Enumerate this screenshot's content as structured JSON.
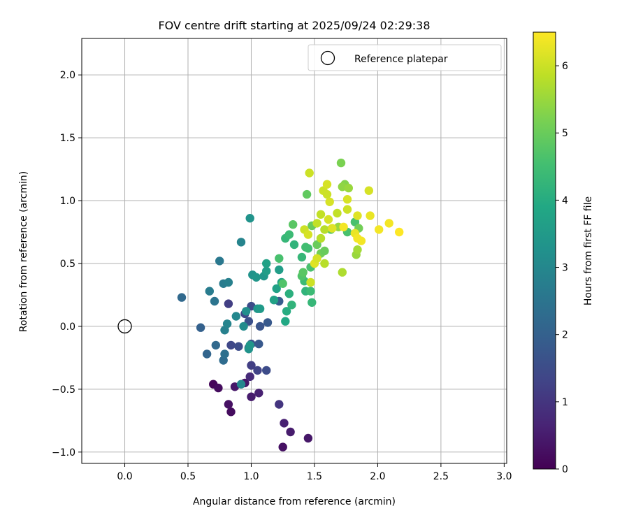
{
  "chart_data": {
    "type": "scatter",
    "title": "FOV centre drift starting at 2025/09/24 02:29:38",
    "xlabel": "Angular distance from reference (arcmin)",
    "ylabel": "Rotation from reference (arcmin)",
    "xlim": [
      -0.34,
      3.02
    ],
    "ylim": [
      -1.09,
      2.29
    ],
    "grid": true,
    "x_ticks": [
      0.0,
      0.5,
      1.0,
      1.5,
      2.0,
      2.5,
      3.0
    ],
    "x_tick_labels": [
      "0.0",
      "0.5",
      "1.0",
      "1.5",
      "2.0",
      "2.5",
      "3.0"
    ],
    "y_ticks": [
      -1.0,
      -0.5,
      0.0,
      0.5,
      1.0,
      1.5,
      2.0
    ],
    "y_tick_labels": [
      "−1.0",
      "−0.5",
      "0.0",
      "0.5",
      "1.0",
      "1.5",
      "2.0"
    ],
    "colorbar": {
      "label": "Hours from first FF file",
      "range": [
        0,
        6.5
      ],
      "colormap": "viridis",
      "ticks": [
        0,
        1,
        2,
        3,
        4,
        5,
        6
      ],
      "tick_labels": [
        "0",
        "1",
        "2",
        "3",
        "4",
        "5",
        "6"
      ]
    },
    "legend": {
      "position": "top-right",
      "entries": [
        "Reference platepar"
      ]
    },
    "reference_point": {
      "name": "Reference platepar",
      "x": 0.0,
      "y": 0.0
    },
    "series": [
      {
        "name": "FOV centre",
        "columns": [
          "x",
          "y",
          "hours"
        ],
        "points": [
          [
            0.7,
            -0.46,
            0.1
          ],
          [
            0.74,
            -0.49,
            0.2
          ],
          [
            0.84,
            -0.68,
            0.2
          ],
          [
            0.82,
            -0.62,
            0.3
          ],
          [
            0.87,
            -0.48,
            0.4
          ],
          [
            0.95,
            -0.45,
            0.4
          ],
          [
            1.0,
            -0.56,
            0.5
          ],
          [
            1.06,
            -0.53,
            0.6
          ],
          [
            1.25,
            -0.96,
            0.3
          ],
          [
            1.45,
            -0.89,
            0.4
          ],
          [
            1.31,
            -0.84,
            0.5
          ],
          [
            1.26,
            -0.77,
            0.6
          ],
          [
            0.99,
            -0.4,
            0.8
          ],
          [
            1.22,
            -0.62,
            1.0
          ],
          [
            1.0,
            -0.31,
            1.2
          ],
          [
            1.05,
            -0.35,
            1.3
          ],
          [
            1.12,
            -0.35,
            1.5
          ],
          [
            0.84,
            -0.15,
            1.4
          ],
          [
            0.9,
            -0.16,
            1.5
          ],
          [
            0.98,
            -0.17,
            1.6
          ],
          [
            1.0,
            -0.14,
            1.7
          ],
          [
            1.06,
            -0.14,
            1.8
          ],
          [
            0.82,
            0.18,
            1.2
          ],
          [
            0.95,
            0.1,
            1.4
          ],
          [
            0.98,
            0.04,
            1.6
          ],
          [
            1.0,
            0.16,
            1.5
          ],
          [
            1.07,
            0.0,
            1.7
          ],
          [
            1.13,
            0.03,
            1.8
          ],
          [
            1.22,
            0.2,
            1.9
          ],
          [
            0.6,
            -0.01,
            2.0
          ],
          [
            0.65,
            -0.22,
            2.1
          ],
          [
            0.72,
            -0.15,
            2.2
          ],
          [
            0.78,
            -0.27,
            2.3
          ],
          [
            0.79,
            -0.22,
            2.4
          ],
          [
            0.45,
            0.23,
            2.2
          ],
          [
            0.71,
            0.2,
            2.5
          ],
          [
            0.67,
            0.28,
            2.7
          ],
          [
            0.78,
            0.34,
            2.7
          ],
          [
            0.82,
            0.35,
            2.8
          ],
          [
            0.75,
            0.52,
            2.6
          ],
          [
            0.92,
            0.67,
            2.9
          ],
          [
            0.99,
            0.86,
            3.3
          ],
          [
            0.79,
            -0.03,
            2.8
          ],
          [
            0.81,
            0.02,
            2.9
          ],
          [
            0.88,
            0.08,
            3.0
          ],
          [
            0.92,
            -0.46,
            3.0
          ],
          [
            0.94,
            0.0,
            3.1
          ],
          [
            0.96,
            0.12,
            3.2
          ],
          [
            0.98,
            -0.18,
            3.3
          ],
          [
            0.99,
            -0.15,
            3.4
          ],
          [
            1.01,
            0.41,
            3.3
          ],
          [
            1.04,
            0.39,
            3.4
          ],
          [
            1.05,
            0.14,
            3.4
          ],
          [
            1.07,
            0.14,
            3.5
          ],
          [
            1.1,
            0.4,
            3.4
          ],
          [
            1.12,
            0.44,
            3.6
          ],
          [
            1.12,
            0.5,
            3.7
          ],
          [
            1.18,
            0.21,
            3.7
          ],
          [
            1.2,
            0.3,
            3.7
          ],
          [
            1.22,
            0.45,
            3.6
          ],
          [
            1.24,
            0.35,
            3.8
          ],
          [
            1.27,
            0.04,
            3.9
          ],
          [
            1.28,
            0.12,
            4.0
          ],
          [
            1.3,
            0.26,
            4.1
          ],
          [
            1.32,
            0.17,
            4.2
          ],
          [
            1.27,
            0.7,
            4.3
          ],
          [
            1.3,
            0.73,
            4.4
          ],
          [
            1.34,
            0.65,
            4.2
          ],
          [
            1.4,
            0.55,
            4.3
          ],
          [
            1.43,
            0.28,
            4.2
          ],
          [
            1.42,
            0.36,
            4.4
          ],
          [
            1.43,
            0.63,
            4.5
          ],
          [
            1.45,
            0.62,
            4.5
          ],
          [
            1.47,
            0.47,
            4.6
          ],
          [
            1.48,
            0.19,
            4.3
          ],
          [
            1.47,
            0.28,
            4.4
          ],
          [
            1.4,
            0.4,
            4.7
          ],
          [
            1.41,
            0.43,
            4.8
          ],
          [
            1.22,
            0.54,
            4.6
          ],
          [
            1.25,
            0.34,
            4.7
          ],
          [
            1.33,
            0.81,
            4.8
          ],
          [
            1.44,
            1.05,
            4.9
          ],
          [
            1.48,
            0.8,
            5.0
          ],
          [
            1.52,
            0.65,
            5.0
          ],
          [
            1.55,
            0.58,
            5.1
          ],
          [
            1.58,
            0.6,
            5.0
          ],
          [
            1.63,
            0.77,
            4.8
          ],
          [
            1.76,
            0.75,
            4.6
          ],
          [
            1.82,
            0.83,
            4.6
          ],
          [
            1.85,
            0.78,
            5.1
          ],
          [
            1.71,
            1.3,
            5.2
          ],
          [
            1.74,
            1.13,
            5.3
          ],
          [
            1.72,
            1.11,
            5.4
          ],
          [
            1.77,
            1.1,
            5.5
          ],
          [
            1.83,
            0.57,
            5.5
          ],
          [
            1.84,
            0.61,
            5.6
          ],
          [
            1.69,
            0.79,
            5.5
          ],
          [
            1.72,
            0.43,
            5.7
          ],
          [
            1.55,
            0.7,
            5.8
          ],
          [
            1.58,
            0.5,
            5.8
          ],
          [
            1.58,
            0.77,
            5.8
          ],
          [
            1.52,
            0.82,
            5.9
          ],
          [
            1.55,
            0.89,
            5.9
          ],
          [
            1.57,
            1.08,
            6.0
          ],
          [
            1.6,
            1.05,
            6.0
          ],
          [
            1.6,
            1.13,
            6.1
          ],
          [
            1.62,
            0.99,
            6.1
          ],
          [
            1.61,
            0.85,
            6.1
          ],
          [
            1.64,
            0.78,
            6.2
          ],
          [
            1.46,
            1.22,
            6.0
          ],
          [
            1.42,
            0.77,
            6.0
          ],
          [
            1.45,
            0.73,
            6.1
          ],
          [
            1.47,
            0.35,
            6.0
          ],
          [
            1.5,
            0.5,
            6.2
          ],
          [
            1.52,
            0.54,
            6.1
          ],
          [
            1.76,
            1.01,
            6.1
          ],
          [
            1.76,
            0.93,
            6.0
          ],
          [
            1.68,
            0.9,
            5.9
          ],
          [
            1.84,
            0.88,
            6.2
          ],
          [
            1.93,
            1.08,
            6.1
          ],
          [
            1.94,
            0.88,
            6.3
          ],
          [
            1.82,
            0.74,
            6.3
          ],
          [
            1.84,
            0.7,
            6.4
          ],
          [
            1.87,
            0.68,
            6.4
          ],
          [
            2.01,
            0.77,
            6.4
          ],
          [
            2.09,
            0.82,
            6.4
          ],
          [
            2.17,
            0.75,
            6.5
          ],
          [
            1.73,
            0.79,
            6.4
          ]
        ]
      }
    ]
  }
}
